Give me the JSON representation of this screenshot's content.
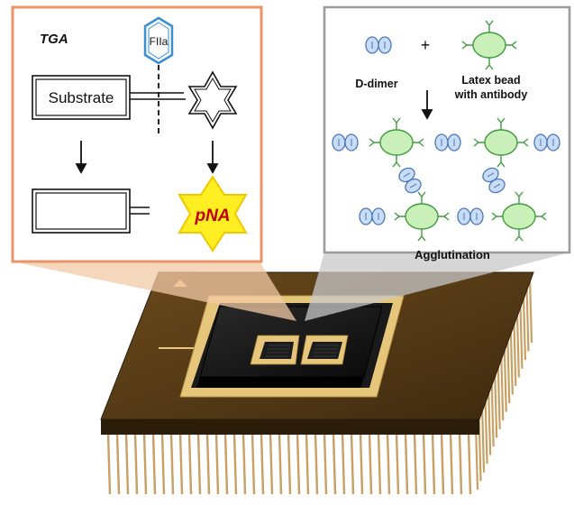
{
  "left_panel": {
    "tag": "TGA",
    "enzyme": "FIIa",
    "substrate": "Substrate",
    "product": "pNA"
  },
  "right_panel": {
    "ddimer": "D-dimer",
    "plus": "+",
    "bead_line1": "Latex bead",
    "bead_line2": "with antibody",
    "result": "Agglutination"
  },
  "colors": {
    "left_border": "#e8956a",
    "callout_orange": "#f2c9a6",
    "callout_gray": "#c8c8c8",
    "ddimer_fill": "#c9dcf5",
    "ddimer_stroke": "#4a78b8",
    "bead_fill": "#c8f0b8",
    "bead_stroke": "#3e9a3e",
    "antibody": "#3e9a3e",
    "pna_star": "#ffee22",
    "fiia_blue": "#3a8fd0",
    "chip_body": "#4a3312",
    "chip_die": "#141414",
    "gold_pad": "#e6c67a",
    "pins": "#c9a063"
  }
}
